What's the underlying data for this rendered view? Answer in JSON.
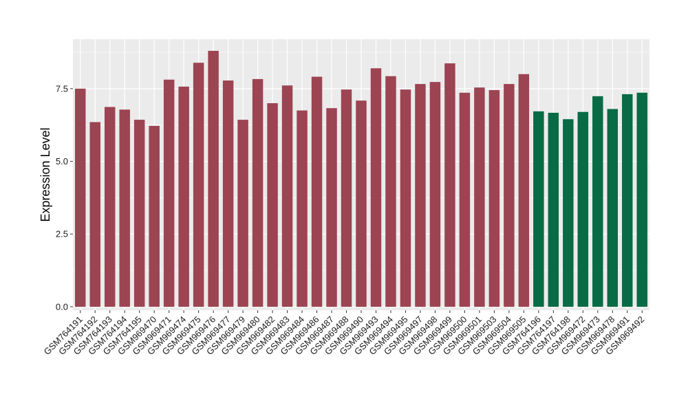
{
  "chart_data": {
    "type": "bar",
    "ylabel": "Expression Level",
    "xlabel": "",
    "ylim": [
      -0.12,
      9.2
    ],
    "yticks": [
      0.0,
      2.5,
      5.0,
      7.5
    ],
    "ytick_labels": [
      "0.0",
      "2.5",
      "5.0",
      "7.5"
    ],
    "grid": true,
    "legend": "none",
    "colors": {
      "group1": "#9c4452",
      "group2": "#086b46",
      "panel": "#ebebeb",
      "grid": "#ffffff"
    },
    "categories": [
      "GSM764191",
      "GSM764192",
      "GSM764193",
      "GSM764194",
      "GSM764195",
      "GSM969470",
      "GSM969471",
      "GSM969474",
      "GSM969475",
      "GSM969476",
      "GSM969477",
      "GSM969479",
      "GSM969480",
      "GSM969482",
      "GSM969483",
      "GSM969484",
      "GSM969486",
      "GSM969487",
      "GSM969488",
      "GSM969490",
      "GSM969493",
      "GSM969494",
      "GSM969495",
      "GSM969497",
      "GSM969498",
      "GSM969499",
      "GSM969500",
      "GSM969501",
      "GSM969503",
      "GSM969504",
      "GSM969505",
      "GSM764196",
      "GSM764197",
      "GSM764198",
      "GSM969472",
      "GSM969473",
      "GSM969478",
      "GSM969491",
      "GSM969492"
    ],
    "values": [
      7.5,
      6.35,
      6.87,
      6.78,
      6.43,
      6.22,
      7.81,
      7.57,
      8.39,
      8.8,
      7.78,
      6.43,
      7.83,
      7.0,
      7.61,
      6.75,
      7.91,
      6.83,
      7.47,
      7.09,
      8.2,
      7.93,
      7.47,
      7.66,
      7.73,
      8.37,
      7.36,
      7.54,
      7.45,
      7.66,
      8.0,
      6.72,
      6.67,
      6.45,
      6.7,
      7.24,
      6.8,
      7.31,
      7.36
    ],
    "groups": [
      1,
      1,
      1,
      1,
      1,
      1,
      1,
      1,
      1,
      1,
      1,
      1,
      1,
      1,
      1,
      1,
      1,
      1,
      1,
      1,
      1,
      1,
      1,
      1,
      1,
      1,
      1,
      1,
      1,
      1,
      1,
      2,
      2,
      2,
      2,
      2,
      2,
      2,
      2
    ]
  }
}
